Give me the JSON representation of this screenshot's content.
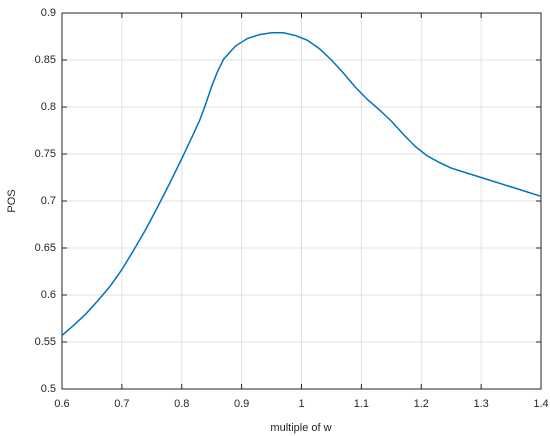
{
  "chart_data": {
    "type": "line",
    "xlabel": "multiple of w",
    "ylabel": "POS",
    "x": [
      0.6,
      0.62,
      0.64,
      0.66,
      0.68,
      0.7,
      0.72,
      0.74,
      0.76,
      0.78,
      0.8,
      0.82,
      0.83,
      0.84,
      0.85,
      0.86,
      0.87,
      0.89,
      0.91,
      0.93,
      0.95,
      0.97,
      0.99,
      1.01,
      1.03,
      1.05,
      1.07,
      1.09,
      1.11,
      1.13,
      1.15,
      1.17,
      1.19,
      1.21,
      1.23,
      1.25,
      1.3,
      1.35,
      1.4
    ],
    "series": [
      {
        "color": "#0072bd",
        "values": [
          0.557,
          0.568,
          0.58,
          0.594,
          0.609,
          0.627,
          0.648,
          0.67,
          0.694,
          0.719,
          0.745,
          0.772,
          0.786,
          0.803,
          0.822,
          0.838,
          0.851,
          0.865,
          0.873,
          0.877,
          0.879,
          0.879,
          0.876,
          0.871,
          0.862,
          0.85,
          0.836,
          0.821,
          0.808,
          0.797,
          0.785,
          0.771,
          0.758,
          0.748,
          0.741,
          0.735,
          0.725,
          0.715,
          0.705
        ]
      }
    ],
    "xlim": [
      0.6,
      1.4
    ],
    "xticks": [
      0.6,
      0.7,
      0.8,
      0.9,
      1,
      1.1,
      1.2,
      1.3,
      1.4
    ],
    "ylim": [
      0.5,
      0.9
    ],
    "yticks": [
      0.5,
      0.55,
      0.6,
      0.65,
      0.7,
      0.75,
      0.8,
      0.85,
      0.9
    ],
    "grid": true
  }
}
